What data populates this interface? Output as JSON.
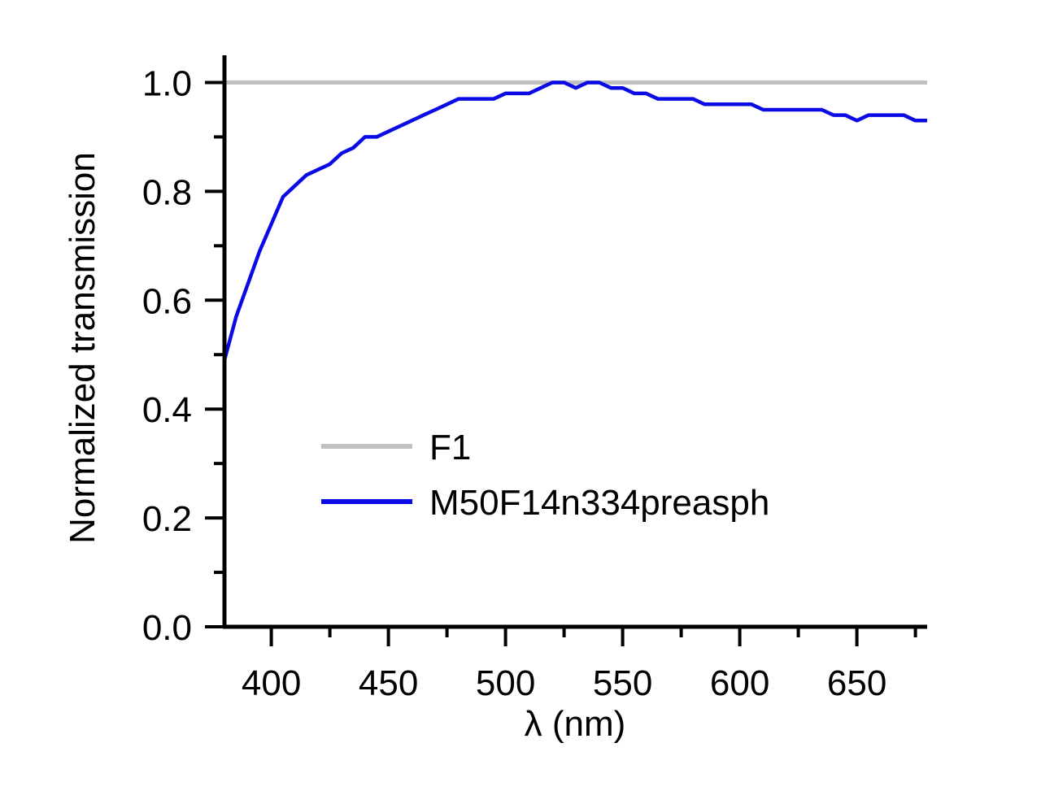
{
  "chart_data": {
    "type": "line",
    "title": "",
    "xlabel": "λ (nm)",
    "ylabel": "Normalized transmission",
    "xlim": [
      380,
      680
    ],
    "ylim": [
      0.0,
      1.05
    ],
    "x_ticks": [
      {
        "value": 400,
        "label": "400"
      },
      {
        "value": 450,
        "label": "450"
      },
      {
        "value": 500,
        "label": "500"
      },
      {
        "value": 550,
        "label": "550"
      },
      {
        "value": 600,
        "label": "600"
      },
      {
        "value": 650,
        "label": "650"
      }
    ],
    "x_minor_ticks": [
      425,
      475,
      525,
      575,
      625,
      675
    ],
    "y_ticks": [
      {
        "value": 0.0,
        "label": "0.0"
      },
      {
        "value": 0.2,
        "label": "0.2"
      },
      {
        "value": 0.4,
        "label": "0.4"
      },
      {
        "value": 0.6,
        "label": "0.6"
      },
      {
        "value": 0.8,
        "label": "0.8"
      },
      {
        "value": 1.0,
        "label": "1.0"
      }
    ],
    "y_minor_ticks": [
      0.1,
      0.3,
      0.5,
      0.7,
      0.9
    ],
    "grid": false,
    "legend_position": "center",
    "series": [
      {
        "name": "F1",
        "color": "#c0c0c0",
        "x": [
          380,
          680
        ],
        "y": [
          1.0,
          1.0
        ]
      },
      {
        "name": "M50F14n334preasph",
        "color": "#0a0ae6",
        "x": [
          380,
          385,
          390,
          395,
          400,
          405,
          410,
          415,
          420,
          425,
          430,
          435,
          440,
          445,
          450,
          455,
          460,
          465,
          470,
          475,
          480,
          485,
          490,
          495,
          500,
          505,
          510,
          515,
          520,
          525,
          530,
          535,
          540,
          545,
          550,
          555,
          560,
          565,
          570,
          575,
          580,
          585,
          590,
          595,
          600,
          605,
          610,
          615,
          620,
          625,
          630,
          635,
          640,
          645,
          650,
          655,
          660,
          665,
          670,
          675,
          680
        ],
        "y": [
          0.49,
          0.57,
          0.63,
          0.69,
          0.74,
          0.79,
          0.81,
          0.83,
          0.84,
          0.85,
          0.87,
          0.88,
          0.9,
          0.9,
          0.91,
          0.92,
          0.93,
          0.94,
          0.95,
          0.96,
          0.97,
          0.97,
          0.97,
          0.97,
          0.98,
          0.98,
          0.98,
          0.99,
          1.0,
          1.0,
          0.99,
          1.0,
          1.0,
          0.99,
          0.99,
          0.98,
          0.98,
          0.97,
          0.97,
          0.97,
          0.97,
          0.96,
          0.96,
          0.96,
          0.96,
          0.96,
          0.95,
          0.95,
          0.95,
          0.95,
          0.95,
          0.95,
          0.94,
          0.94,
          0.93,
          0.94,
          0.94,
          0.94,
          0.94,
          0.93,
          0.93
        ]
      }
    ]
  }
}
